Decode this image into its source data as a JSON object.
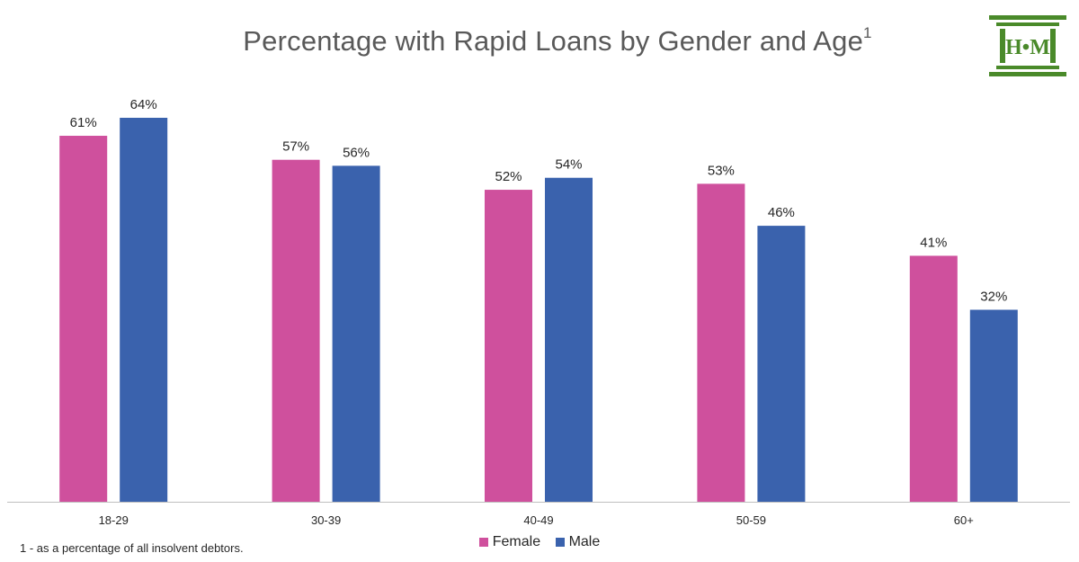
{
  "title": "Percentage with Rapid Loans by Gender and Age",
  "title_superscript": "1",
  "footnote": "1 - as a percentage of all insolvent debtors.",
  "logo": {
    "text": "H•M",
    "color": "#4a8a2a",
    "icon": "columns-logo-icon"
  },
  "colors": {
    "female": "#cf509d",
    "male": "#3a62ad",
    "axis": "#bfbfbf"
  },
  "chart_data": {
    "type": "bar",
    "categories": [
      "18-29",
      "30-39",
      "40-49",
      "50-59",
      "60+"
    ],
    "series": [
      {
        "name": "Female",
        "values": [
          61,
          57,
          52,
          53,
          41
        ],
        "labels": [
          "61%",
          "57%",
          "52%",
          "53%",
          "41%"
        ]
      },
      {
        "name": "Male",
        "values": [
          64,
          56,
          54,
          46,
          32
        ],
        "labels": [
          "64%",
          "56%",
          "54%",
          "46%",
          "32%"
        ]
      }
    ],
    "ylim": [
      0,
      64
    ],
    "grid": false,
    "legend_position": "bottom"
  }
}
